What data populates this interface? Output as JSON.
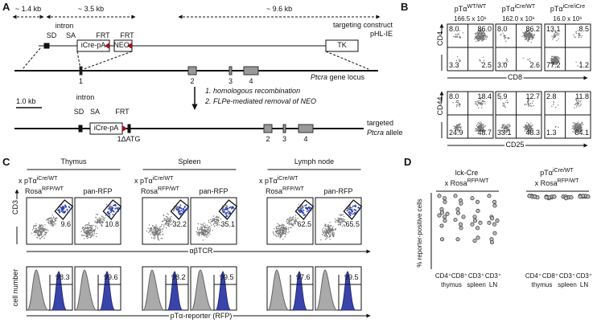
{
  "panel_a": {
    "label": "A",
    "distances": [
      "~ 1.4 kb",
      "~ 3.5 kb",
      "~ 9.6 kb"
    ],
    "construct": {
      "intron": "intron",
      "sd": "SD",
      "sa": "SA",
      "frt1": "FRT",
      "frt2": "FRT",
      "icre": "iCre-pA",
      "neo": "NEO",
      "tk": "TK",
      "title": "targeting construct",
      "subtitle": "pHL-IE"
    },
    "locus": {
      "exons": [
        "1",
        "2",
        "3",
        "4"
      ],
      "gene": "Ptcra",
      "suffix": " gene locus"
    },
    "steps": [
      "1. homologous recombination",
      "2. FLPe-mediated removal of NEO"
    ],
    "scale": "1.0 kb",
    "allele": {
      "intron": "intron",
      "sd": "SD",
      "sa": "SA",
      "frt": "FRT",
      "icre": "iCre-pA",
      "exons": [
        "1ΔATG",
        "2",
        "3",
        "4"
      ],
      "title": "targeted",
      "gene": "Ptcra",
      "suffix": " allele"
    }
  },
  "panel_b": {
    "label": "B",
    "columns": [
      {
        "base": "pTα",
        "sup": "WT/WT",
        "count": "166.5 x 10⁶"
      },
      {
        "base": "pTα",
        "sup": "iCre/WT",
        "count": "162.0 x 10⁶"
      },
      {
        "base": "pTα",
        "sup": "iCre/iCre",
        "count": "16.0 x 10⁶"
      }
    ],
    "rows": [
      {
        "ylabel": "CD4",
        "xlabel": "CD8",
        "quadrants": [
          [
            "8.0",
            "86.0",
            "3.3",
            "2.5"
          ],
          [
            "8.0",
            "86.2",
            "3.0",
            "2.6"
          ],
          [
            "13.1",
            "8.5",
            "77.2",
            "1.2"
          ]
        ]
      },
      {
        "ylabel": "CD44",
        "xlabel": "CD25",
        "quadrants": [
          [
            "8.0",
            "18.4",
            "24.9",
            "48.7"
          ],
          [
            "5.9",
            "12.7",
            "33.1",
            "48.3"
          ],
          [
            "2.8",
            "11.8",
            "1.3",
            "84.1"
          ]
        ]
      }
    ]
  },
  "panel_c": {
    "label": "C",
    "organs": [
      "Thymus",
      "Spleen",
      "Lymph node"
    ],
    "cross": {
      "x": "x pTα",
      "sup1": "iCre/WT",
      "rosa": "Rosa",
      "sup2": "RFP/WT"
    },
    "pan": "pan-RFP",
    "gates": [
      "9.6",
      "10.8",
      "32.2",
      "35.1",
      "62.5",
      "65.5"
    ],
    "histograms": [
      "98.3",
      "99.6",
      "98.2",
      "99.5",
      "97.6",
      "99.5"
    ],
    "ylabel_top": "CD3",
    "xlabel_top": "αβTCR",
    "ylabel_bottom": "cell number",
    "xlabel_bottom": "pTα-reporter (RFP)"
  },
  "panel_d": {
    "label": "D",
    "groups": [
      {
        "line1": "lck-Cre",
        "line1_sup": "",
        "line2": "x Rosa",
        "line2_sup": "RFP/WT"
      },
      {
        "line1": "pTα",
        "line1_sup": "iCre/WT",
        "line2": "x Rosa",
        "line2_sup": "RFP/WT"
      }
    ],
    "ylabel": "% reporter-positive cells",
    "chart_data": {
      "type": "scatter",
      "ylim": [
        0,
        100
      ],
      "categories": [
        "CD4⁺",
        "CD8⁺",
        "CD3⁺",
        "CD3⁺"
      ],
      "tissues": [
        "thymus",
        "spleen",
        "LN"
      ],
      "series": [
        {
          "name": "lck-Cre",
          "color": "#bbbbbb",
          "values": [
            [
              98,
              95,
              90,
              80,
              76,
              74,
              72,
              70,
              65,
              58,
              40
            ],
            [
              98,
              92,
              88,
              80,
              75,
              70,
              66,
              60,
              55,
              40
            ],
            [
              95,
              90,
              78,
              70,
              65,
              62,
              60,
              55,
              42,
              38
            ],
            [
              98,
              90,
              85,
              70,
              68,
              65,
              62,
              60,
              48,
              40,
              36
            ]
          ]
        },
        {
          "name": "pTα iCre/WT",
          "color": "#bbbbbb",
          "values": [
            [
              98,
              97,
              97,
              98,
              97,
              96,
              98,
              97
            ],
            [
              97,
              96,
              97,
              95,
              96,
              97,
              96
            ],
            [
              97,
              96,
              96,
              97,
              95,
              96
            ],
            [
              98,
              97,
              98,
              97,
              98,
              97,
              97
            ]
          ]
        }
      ]
    }
  }
}
